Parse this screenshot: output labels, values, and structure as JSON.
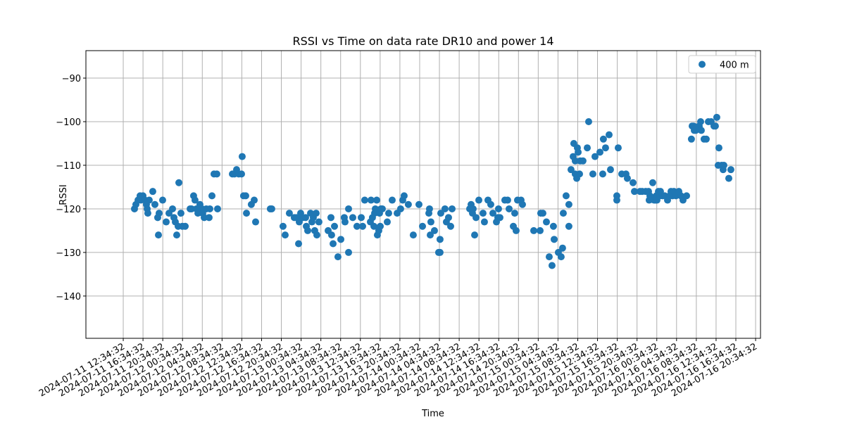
{
  "chart_data": {
    "type": "scatter",
    "title": "RSSI vs Time on data rate DR10 and power 14",
    "xlabel": "Time",
    "ylabel": "RSSI",
    "xlim": [
      "2024-07-11 05:01:00",
      "2024-07-16 21:34:00"
    ],
    "ylim": [
      -149.7,
      -83.7
    ],
    "xticks": [
      "2024-07-11 12:34:32",
      "2024-07-11 16:34:32",
      "2024-07-11 20:34:32",
      "2024-07-12 00:34:32",
      "2024-07-12 04:34:32",
      "2024-07-12 08:34:32",
      "2024-07-12 12:34:32",
      "2024-07-12 16:34:32",
      "2024-07-12 20:34:32",
      "2024-07-13 00:34:32",
      "2024-07-13 04:34:32",
      "2024-07-13 08:34:32",
      "2024-07-13 12:34:32",
      "2024-07-13 16:34:32",
      "2024-07-13 20:34:32",
      "2024-07-14 00:34:32",
      "2024-07-14 04:34:32",
      "2024-07-14 08:34:32",
      "2024-07-14 12:34:32",
      "2024-07-14 16:34:32",
      "2024-07-14 20:34:32",
      "2024-07-15 00:34:32",
      "2024-07-15 04:34:32",
      "2024-07-15 08:34:32",
      "2024-07-15 12:34:32",
      "2024-07-15 16:34:32",
      "2024-07-15 20:34:32",
      "2024-07-16 00:34:32",
      "2024-07-16 04:34:32",
      "2024-07-16 08:34:32",
      "2024-07-16 12:34:32",
      "2024-07-16 16:34:32",
      "2024-07-16 20:34:32"
    ],
    "yticks": [
      {
        "value": -90,
        "label": "−90"
      },
      {
        "value": -100,
        "label": "−100"
      },
      {
        "value": -110,
        "label": "−110"
      },
      {
        "value": -120,
        "label": "−120"
      },
      {
        "value": -130,
        "label": "−130"
      },
      {
        "value": -140,
        "label": "−140"
      }
    ],
    "grid": true,
    "legend": "upper right",
    "series": [
      {
        "name": "400 m",
        "color": "#1f77b4",
        "x": [
          "2024-07-11 14:51:00",
          "2024-07-11 15:08:00",
          "2024-07-11 15:34:00",
          "2024-07-11 15:59:00",
          "2024-07-11 16:08:00",
          "2024-07-11 16:34:00",
          "2024-07-11 16:59:00",
          "2024-07-11 17:16:00",
          "2024-07-11 17:25:00",
          "2024-07-11 17:33:00",
          "2024-07-11 17:50:00",
          "2024-07-11 18:33:00",
          "2024-07-11 18:59:00",
          "2024-07-11 19:33:00",
          "2024-07-11 19:42:00",
          "2024-07-11 19:50:00",
          "2024-07-11 20:33:00",
          "2024-07-11 21:16:00",
          "2024-07-11 21:50:00",
          "2024-07-11 22:33:00",
          "2024-07-11 22:50:00",
          "2024-07-11 23:07:00",
          "2024-07-11 23:24:00",
          "2024-07-11 23:41:00",
          "2024-07-11 23:50:00",
          "2024-07-12 00:15:00",
          "2024-07-12 00:32:00",
          "2024-07-12 01:07:00",
          "2024-07-12 02:07:00",
          "2024-07-12 02:24:00",
          "2024-07-12 02:49:00",
          "2024-07-12 03:06:00",
          "2024-07-12 03:23:00",
          "2024-07-12 03:41:00",
          "2024-07-12 04:06:00",
          "2024-07-12 04:32:00",
          "2024-07-12 04:40:00",
          "2024-07-12 04:58:00",
          "2024-07-12 05:23:00",
          "2024-07-12 05:57:00",
          "2024-07-12 06:06:00",
          "2024-07-12 06:32:00",
          "2024-07-12 06:57:00",
          "2024-07-12 07:31:00",
          "2024-07-12 07:40:00",
          "2024-07-12 10:40:00",
          "2024-07-12 11:05:00",
          "2024-07-12 11:31:00",
          "2024-07-12 11:57:00",
          "2024-07-12 12:31:00",
          "2024-07-12 12:39:00",
          "2024-07-12 12:56:00",
          "2024-07-12 13:22:00",
          "2024-07-12 13:31:00",
          "2024-07-12 14:30:00",
          "2024-07-12 15:05:00",
          "2024-07-12 15:22:00",
          "2024-07-12 18:21:00",
          "2024-07-12 18:38:00",
          "2024-07-12 20:55:00",
          "2024-07-12 21:21:00",
          "2024-07-12 22:12:00",
          "2024-07-12 23:12:00",
          "2024-07-12 23:38:00",
          "2024-07-13 00:04:00",
          "2024-07-13 00:12:00",
          "2024-07-13 00:29:00",
          "2024-07-13 00:55:00",
          "2024-07-13 01:29:00",
          "2024-07-13 01:38:00",
          "2024-07-13 01:55:00",
          "2024-07-13 02:29:00",
          "2024-07-13 02:46:00",
          "2024-07-13 03:03:00",
          "2024-07-13 03:20:00",
          "2024-07-13 03:37:00",
          "2024-07-13 03:46:00",
          "2024-07-13 04:11:00",
          "2024-07-13 06:03:00",
          "2024-07-13 06:37:00",
          "2024-07-13 06:45:00",
          "2024-07-13 07:03:00",
          "2024-07-13 07:20:00",
          "2024-07-13 08:02:00",
          "2024-07-13 08:37:00",
          "2024-07-13 09:19:00",
          "2024-07-13 09:28:00",
          "2024-07-13 10:11:00",
          "2024-07-13 10:11:00",
          "2024-07-13 11:02:00",
          "2024-07-13 11:53:00",
          "2024-07-13 12:45:00",
          "2024-07-13 13:02:00",
          "2024-07-13 13:27:00",
          "2024-07-13 14:36:00",
          "2024-07-13 14:44:00",
          "2024-07-13 15:01:00",
          "2024-07-13 15:19:00",
          "2024-07-13 15:27:00",
          "2024-07-13 15:36:00",
          "2024-07-13 15:53:00",
          "2024-07-13 16:01:00",
          "2024-07-13 16:18:00",
          "2024-07-13 16:27:00",
          "2024-07-13 16:36:00",
          "2024-07-13 16:44:00",
          "2024-07-13 17:01:00",
          "2024-07-13 18:01:00",
          "2024-07-13 18:18:00",
          "2024-07-13 19:01:00",
          "2024-07-13 20:01:00",
          "2024-07-13 20:43:00",
          "2024-07-13 21:09:00",
          "2024-07-13 21:26:00",
          "2024-07-13 22:17:00",
          "2024-07-13 23:17:00",
          "2024-07-14 00:26:00",
          "2024-07-14 01:09:00",
          "2024-07-14 02:26:00",
          "2024-07-14 02:34:00",
          "2024-07-14 02:43:00",
          "2024-07-14 02:51:00",
          "2024-07-14 03:34:00",
          "2024-07-14 04:25:00",
          "2024-07-14 04:42:00",
          "2024-07-14 04:42:00",
          "2024-07-14 04:51:00",
          "2024-07-14 05:42:00",
          "2024-07-14 05:59:00",
          "2024-07-14 06:25:00",
          "2024-07-14 06:51:00",
          "2024-07-14 07:08:00",
          "2024-07-14 10:42:00",
          "2024-07-14 10:59:00",
          "2024-07-14 11:16:00",
          "2024-07-14 11:24:00",
          "2024-07-14 11:42:00",
          "2024-07-14 11:59:00",
          "2024-07-14 12:33:00",
          "2024-07-14 13:24:00",
          "2024-07-14 13:41:00",
          "2024-07-14 14:24:00",
          "2024-07-14 14:58:00",
          "2024-07-14 15:24:00",
          "2024-07-14 16:07:00",
          "2024-07-14 16:24:00",
          "2024-07-14 16:32:00",
          "2024-07-14 16:49:00",
          "2024-07-14 17:49:00",
          "2024-07-14 18:23:00",
          "2024-07-14 18:41:00",
          "2024-07-14 19:32:00",
          "2024-07-14 19:49:00",
          "2024-07-14 20:06:00",
          "2024-07-14 20:23:00",
          "2024-07-14 21:06:00",
          "2024-07-14 21:23:00",
          "2024-07-14 23:40:00",
          "2024-07-15 00:57:00",
          "2024-07-15 01:05:00",
          "2024-07-15 01:31:00",
          "2024-07-15 02:14:00",
          "2024-07-15 02:48:00",
          "2024-07-15 03:22:00",
          "2024-07-15 03:39:00",
          "2024-07-15 03:48:00",
          "2024-07-15 04:39:00",
          "2024-07-15 05:13:00",
          "2024-07-15 05:30:00",
          "2024-07-15 05:39:00",
          "2024-07-15 06:13:00",
          "2024-07-15 06:47:00",
          "2024-07-15 06:47:00",
          "2024-07-15 07:13:00",
          "2024-07-15 07:39:00",
          "2024-07-15 07:47:00",
          "2024-07-15 08:04:00",
          "2024-07-15 08:04:00",
          "2024-07-15 08:22:00",
          "2024-07-15 08:30:00",
          "2024-07-15 08:39:00",
          "2024-07-15 08:56:00",
          "2024-07-15 09:04:00",
          "2024-07-15 09:38:00",
          "2024-07-15 10:30:00",
          "2024-07-15 10:47:00",
          "2024-07-15 11:38:00",
          "2024-07-15 12:04:00",
          "2024-07-15 13:04:00",
          "2024-07-15 13:38:00",
          "2024-07-15 13:46:00",
          "2024-07-15 14:12:00",
          "2024-07-15 14:55:00",
          "2024-07-15 15:12:00",
          "2024-07-15 16:29:00",
          "2024-07-15 16:29:00",
          "2024-07-15 16:46:00",
          "2024-07-15 17:29:00",
          "2024-07-15 18:20:00",
          "2024-07-15 18:37:00",
          "2024-07-15 19:46:00",
          "2024-07-15 20:03:00",
          "2024-07-15 21:11:00",
          "2024-07-15 21:37:00",
          "2024-07-15 22:20:00",
          "2024-07-15 22:54:00",
          "2024-07-15 23:02:00",
          "2024-07-15 23:11:00",
          "2024-07-15 23:45:00",
          "2024-07-16 00:02:00",
          "2024-07-16 00:19:00",
          "2024-07-16 00:28:00",
          "2024-07-16 00:36:00",
          "2024-07-16 00:54:00",
          "2024-07-16 01:11:00",
          "2024-07-16 01:19:00",
          "2024-07-16 01:45:00",
          "2024-07-16 02:11:00",
          "2024-07-16 02:45:00",
          "2024-07-16 03:10:00",
          "2024-07-16 03:27:00",
          "2024-07-16 03:45:00",
          "2024-07-16 04:02:00",
          "2024-07-16 04:27:00",
          "2024-07-16 05:02:00",
          "2024-07-16 05:27:00",
          "2024-07-16 05:53:00",
          "2024-07-16 06:36:00",
          "2024-07-16 07:35:00",
          "2024-07-16 07:44:00",
          "2024-07-16 08:01:00",
          "2024-07-16 08:10:00",
          "2024-07-16 08:27:00",
          "2024-07-16 09:10:00",
          "2024-07-16 09:27:00",
          "2024-07-16 09:35:00",
          "2024-07-16 10:09:00",
          "2024-07-16 10:35:00",
          "2024-07-16 11:01:00",
          "2024-07-16 11:35:00",
          "2024-07-16 12:09:00",
          "2024-07-16 12:26:00",
          "2024-07-16 12:43:00",
          "2024-07-16 13:00:00",
          "2024-07-16 13:09:00",
          "2024-07-16 13:43:00",
          "2024-07-16 14:00:00",
          "2024-07-16 14:09:00",
          "2024-07-16 15:09:00",
          "2024-07-16 15:34:00"
        ],
        "values": [
          -120,
          -119,
          -118,
          -117,
          -118,
          -117,
          -118,
          -119,
          -120,
          -121,
          -118,
          -116,
          -119,
          -122,
          -126,
          -121,
          -118,
          -123,
          -121,
          -120,
          -122,
          -123,
          -126,
          -124,
          -114,
          -121,
          -124,
          -124,
          -120,
          -120,
          -117,
          -118,
          -120,
          -121,
          -119,
          -120,
          -121,
          -122,
          -120,
          -122,
          -120,
          -117,
          -112,
          -112,
          -120,
          -112,
          -112,
          -111,
          -112,
          -112,
          -108,
          -117,
          -117,
          -121,
          -119,
          -118,
          -123,
          -120,
          -120,
          -124,
          -126,
          -121,
          -122,
          -122,
          -128,
          -123,
          -121,
          -122,
          -122,
          -124,
          -125,
          -121,
          -123,
          -122,
          -125,
          -121,
          -126,
          -123,
          -125,
          -122,
          -126,
          -128,
          -124,
          -131,
          -127,
          -122,
          -123,
          -120,
          -130,
          -122,
          -124,
          -122,
          -124,
          -118,
          -123,
          -118,
          -122,
          -124,
          -121,
          -120,
          -118,
          -126,
          -125,
          -121,
          -124,
          -120,
          -120,
          -123,
          -121,
          -118,
          -121,
          -120,
          -118,
          -117,
          -119,
          -126,
          -119,
          -124,
          -121,
          -120,
          -126,
          -123,
          -125,
          -130,
          -130,
          -127,
          -121,
          -120,
          -123,
          -122,
          -124,
          -120,
          -120,
          -119,
          -121,
          -120,
          -126,
          -122,
          -118,
          -121,
          -123,
          -118,
          -119,
          -121,
          -123,
          -122,
          -120,
          -122,
          -118,
          -118,
          -120,
          -124,
          -121,
          -125,
          -118,
          -118,
          -119,
          -125,
          -125,
          -121,
          -121,
          -123,
          -131,
          -133,
          -124,
          -127,
          -130,
          -131,
          -129,
          -121,
          -117,
          -119,
          -124,
          -111,
          -108,
          -105,
          -109,
          -112,
          -113,
          -106,
          -107,
          -112,
          -109,
          -109,
          -106,
          -100,
          -112,
          -108,
          -107,
          -112,
          -104,
          -106,
          -103,
          -111,
          -117,
          -118,
          -106,
          -112,
          -112,
          -113,
          -114,
          -116,
          -116,
          -116,
          -116,
          -116,
          -118,
          -117,
          -114,
          -118,
          -118,
          -117,
          -118,
          -116,
          -117,
          -116,
          -117,
          -117,
          -118,
          -117,
          -116,
          -117,
          -116,
          -117,
          -116,
          -117,
          -118,
          -117,
          -104,
          -101,
          -101,
          -102,
          -102,
          -101,
          -100,
          -102,
          -104,
          -104,
          -100,
          -100,
          -101,
          -101,
          -99,
          -110,
          -106,
          -110,
          -111,
          -110,
          -113,
          -111
        ]
      }
    ]
  }
}
